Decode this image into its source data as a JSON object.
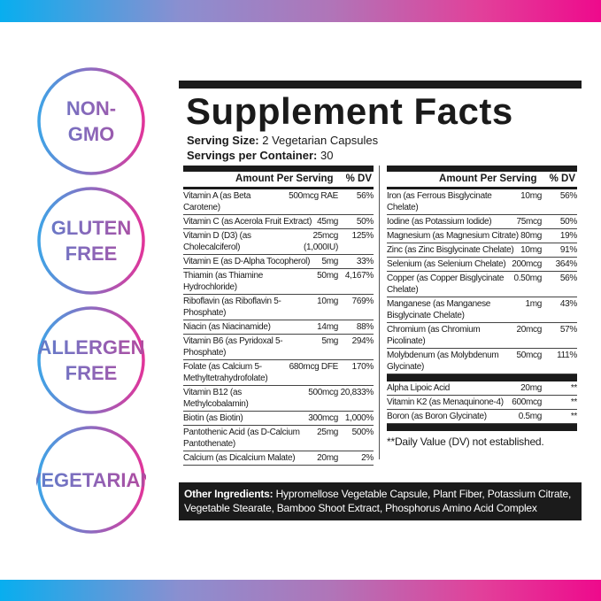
{
  "colors": {
    "gradient_start": "#08aeef",
    "gradient_end": "#ee0a8c",
    "panel": "#1b1b1b"
  },
  "badges": [
    {
      "label": "NON-\nGMO"
    },
    {
      "label": "GLUTEN\nFREE"
    },
    {
      "label": "ALLERGEN\nFREE"
    },
    {
      "label": "VEGETARIAN"
    }
  ],
  "facts": {
    "title": "Supplement Facts",
    "serving_size_label": "Serving Size:",
    "serving_size": "2 Vegetarian Capsules",
    "servings_label": "Servings per Container:",
    "servings": "30",
    "amount_header": "Amount Per Serving",
    "dv_header": "% DV",
    "left_rows": [
      {
        "name": "Vitamin A (as Beta Carotene)",
        "amount": "500mcg RAE",
        "dv": "56%"
      },
      {
        "name": "Vitamin C (as Acerola Fruit Extract)",
        "amount": "45mg",
        "dv": "50%"
      },
      {
        "name": "Vitamin D (D3) (as Cholecalciferol)",
        "amount": "25mcg\n(1,000IU)",
        "dv": "125%"
      },
      {
        "name": "Vitamin E (as D-Alpha Tocopherol)",
        "amount": "5mg",
        "dv": "33%"
      },
      {
        "name": "Thiamin (as Thiamine Hydrochloride)",
        "amount": "50mg",
        "dv": "4,167%"
      },
      {
        "name": "Riboflavin (as Riboflavin 5-Phosphate)",
        "amount": "10mg",
        "dv": "769%"
      },
      {
        "name": "Niacin (as Niacinamide)",
        "amount": "14mg",
        "dv": "88%"
      },
      {
        "name": "Vitamin B6 (as Pyridoxal 5-Phosphate)",
        "amount": "5mg",
        "dv": "294%"
      },
      {
        "name": "Folate (as Calcium 5-Methyltetrahydrofolate)",
        "amount": "680mcg DFE",
        "dv": "170%"
      },
      {
        "name": "Vitamin B12 (as Methylcobalamin)",
        "amount": "500mcg",
        "dv": "20,833%"
      },
      {
        "name": "Biotin (as Biotin)",
        "amount": "300mcg",
        "dv": "1,000%"
      },
      {
        "name": "Pantothenic Acid (as D-Calcium Pantothenate)",
        "amount": "25mg",
        "dv": "500%"
      },
      {
        "name": "Calcium (as Dicalcium Malate)",
        "amount": "20mg",
        "dv": "2%"
      }
    ],
    "right_rows": [
      {
        "name": "Iron (as Ferrous Bisglycinate Chelate)",
        "amount": "10mg",
        "dv": "56%"
      },
      {
        "name": "Iodine (as Potassium Iodide)",
        "amount": "75mcg",
        "dv": "50%"
      },
      {
        "name": "Magnesium (as Magnesium Citrate)",
        "amount": "80mg",
        "dv": "19%"
      },
      {
        "name": "Zinc (as Zinc Bisglycinate Chelate)",
        "amount": "10mg",
        "dv": "91%"
      },
      {
        "name": "Selenium (as Selenium Chelate)",
        "amount": "200mcg",
        "dv": "364%"
      },
      {
        "name": "Copper (as Copper Bisglycinate Chelate)",
        "amount": "0.50mg",
        "dv": "56%"
      },
      {
        "name": "Manganese (as Manganese Bisglycinate Chelate)",
        "amount": "1mg",
        "dv": "43%"
      },
      {
        "name": "Chromium (as Chromium Picolinate)",
        "amount": "20mcg",
        "dv": "57%"
      },
      {
        "name": "Molybdenum (as Molybdenum Glycinate)",
        "amount": "50mcg",
        "dv": "111%"
      }
    ],
    "other_rows": [
      {
        "name": "Alpha Lipoic Acid",
        "amount": "20mg",
        "dv": "**"
      },
      {
        "name": "Vitamin K2 (as Menaquinone-4)",
        "amount": "600mcg",
        "dv": "**"
      },
      {
        "name": "Boron (as Boron Glycinate)",
        "amount": "0.5mg",
        "dv": "**"
      }
    ],
    "footnote": "**Daily Value (DV) not established.",
    "other_label": "Other Ingredients:",
    "other_text": "Hypromellose Vegetable Capsule, Plant Fiber, Potassium Citrate, Vegetable Stearate, Bamboo Shoot Extract, Phosphorus Amino Acid Complex"
  }
}
